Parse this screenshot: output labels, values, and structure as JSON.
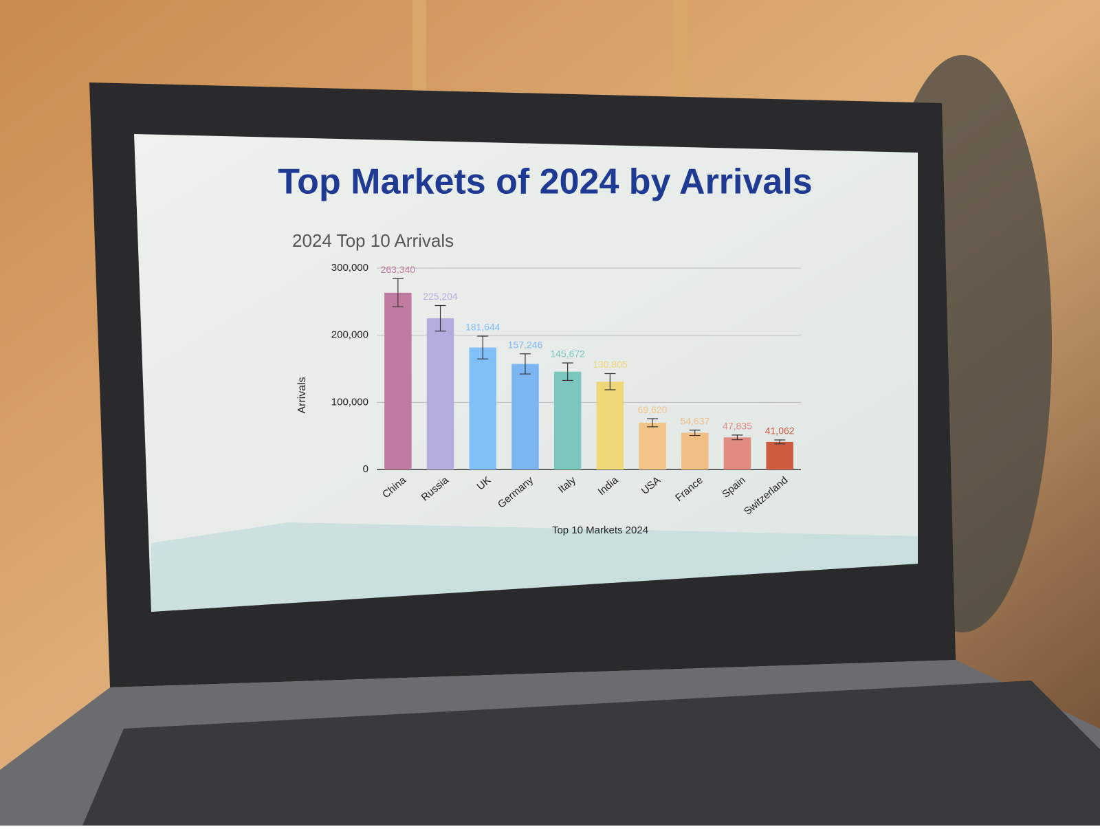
{
  "title": "Top Markets of 2024 by Arrivals",
  "chart_data": {
    "type": "bar",
    "title": "2024 Top 10 Arrivals",
    "x_label": "Top 10 Markets 2024",
    "y_label": "Arrivals",
    "categories": [
      "China",
      "Russia",
      "UK",
      "Germany",
      "Italy",
      "India",
      "USA",
      "France",
      "Spain",
      "Switzerland"
    ],
    "values": [
      263340,
      225204,
      181644,
      157246,
      145672,
      130805,
      69620,
      54637,
      47835,
      41062
    ],
    "value_labels": [
      "263,340",
      "225,204",
      "181,644",
      "157,246",
      "145,672",
      "130,805",
      "69,620",
      "54,637",
      "47,835",
      "41,062"
    ],
    "errors": [
      21000,
      19000,
      17000,
      15000,
      13000,
      12000,
      6000,
      4000,
      3500,
      3000
    ],
    "colors": [
      "#c27ba0",
      "#b4aee0",
      "#80bff8",
      "#7cb6f2",
      "#7cc6c0",
      "#efd676",
      "#f2c488",
      "#f0bd82",
      "#e08a80",
      "#cc5b40"
    ],
    "ylim": [
      0,
      300000
    ],
    "yticks": [
      0,
      {
        "value": 100000,
        "label": "100,000"
      },
      {
        "value": 200000,
        "label": "200,000"
      },
      {
        "value": 300000,
        "label": "300,000"
      }
    ],
    "grid": true
  }
}
